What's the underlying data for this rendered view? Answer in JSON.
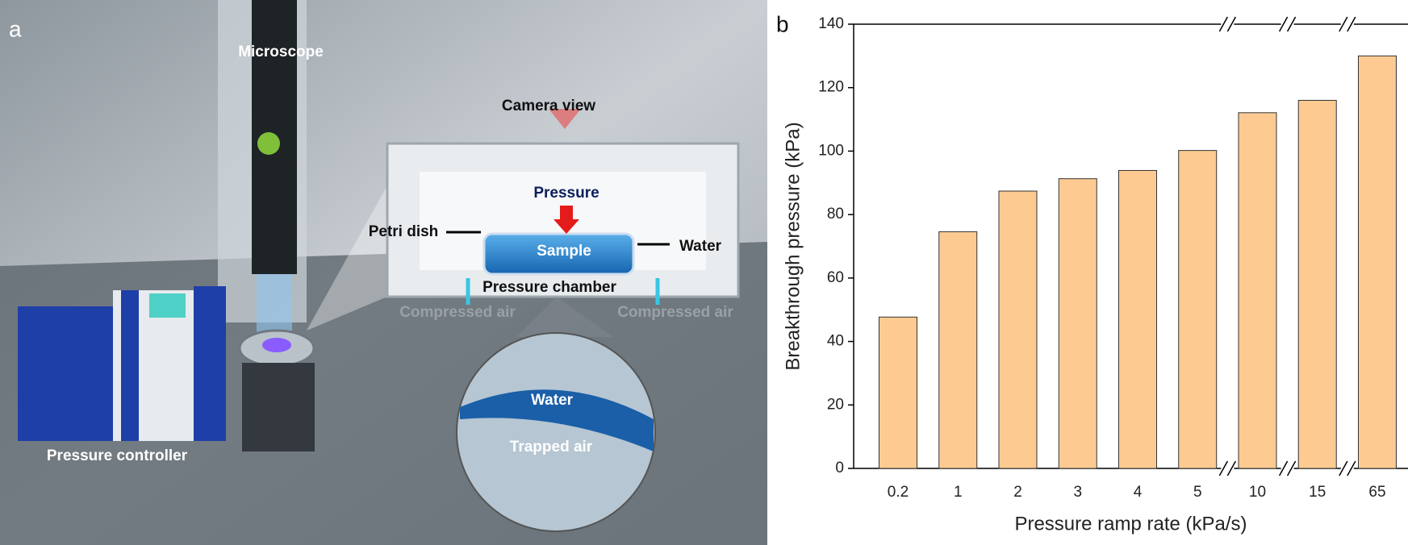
{
  "panel_a": {
    "label": "a",
    "labels": {
      "microscope": "Microscope",
      "camera_view": "Camera view",
      "pressure": "Pressure",
      "petri_dish": "Petri dish",
      "sample": "Sample",
      "water": "Water",
      "pressure_chamber": "Pressure chamber",
      "compressed_air_left": "Compressed air",
      "compressed_air_right": "Compressed air",
      "inset_water": "Water",
      "trapped_air": "Trapped air",
      "pressure_controller": "Pressure controller"
    }
  },
  "chart_data": {
    "type": "bar",
    "panel_label": "b",
    "x_label": "Pressure ramp rate (kPa/s)",
    "y_label": "Breakthrough pressure (kPa)",
    "categories": [
      "0.2",
      "1",
      "2",
      "3",
      "4",
      "5",
      "10",
      "15",
      "65"
    ],
    "values": [
      47.7,
      74.6,
      87.4,
      91.3,
      93.9,
      100.2,
      112.1,
      116,
      130
    ],
    "color": "#fdcb92",
    "ylim": [
      0,
      140
    ],
    "yticks": [
      0,
      20,
      40,
      60,
      80,
      100,
      120,
      140
    ]
  }
}
